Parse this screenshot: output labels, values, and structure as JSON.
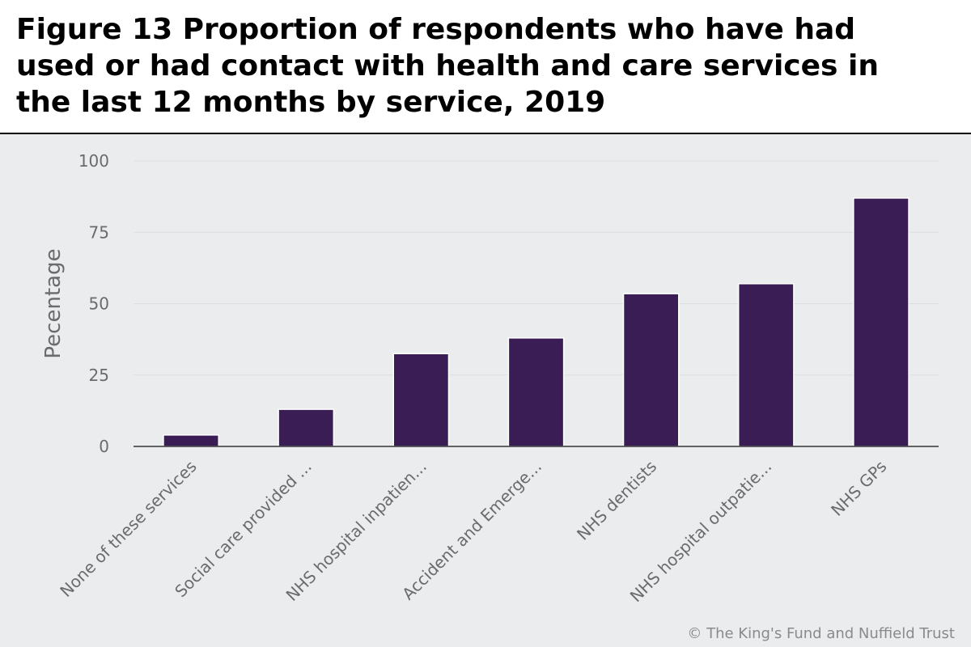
{
  "title": "Figure 13 Proportion of respondents who have had used or had contact with health and care services in the last 12 months by service, 2019",
  "copyright": "© The King's Fund and Nuffield Trust",
  "colors": {
    "bar": "#3a1d55",
    "background": "#ebecee",
    "grid": "#dcdde0",
    "axis_text": "#6b6b6b"
  },
  "chart_data": {
    "type": "bar",
    "ylabel": "Pecentage",
    "xlabel": "",
    "ylim": [
      0,
      100
    ],
    "yticks": [
      0,
      25,
      50,
      75,
      100
    ],
    "grid": true,
    "categories": [
      "None of these services",
      "Social care provided ...",
      "NHS hospital inpatien...",
      "Accident and Emerge...",
      "NHS dentists",
      "NHS hospital outpatie...",
      "NHS GPs"
    ],
    "values": [
      4,
      13,
      32.5,
      38,
      53.5,
      57,
      87
    ]
  }
}
